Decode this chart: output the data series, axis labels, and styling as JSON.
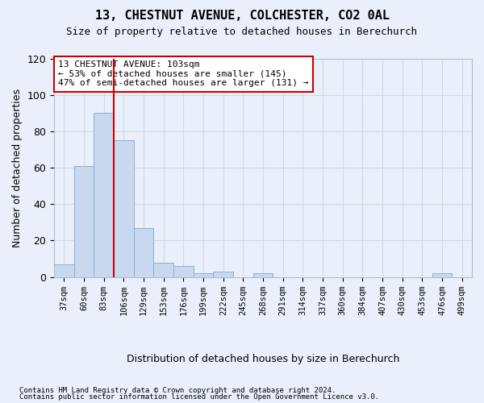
{
  "title": "13, CHESTNUT AVENUE, COLCHESTER, CO2 0AL",
  "subtitle": "Size of property relative to detached houses in Berechurch",
  "xlabel": "Distribution of detached houses by size in Berechurch",
  "ylabel": "Number of detached properties",
  "bar_color": "#c8d9ef",
  "bar_edge_color": "#8aafd4",
  "bar_categories": [
    "37sqm",
    "60sqm",
    "83sqm",
    "106sqm",
    "129sqm",
    "153sqm",
    "176sqm",
    "199sqm",
    "222sqm",
    "245sqm",
    "268sqm",
    "291sqm",
    "314sqm",
    "337sqm",
    "360sqm",
    "384sqm",
    "407sqm",
    "430sqm",
    "453sqm",
    "476sqm",
    "499sqm"
  ],
  "bar_values": [
    7,
    61,
    90,
    75,
    27,
    8,
    6,
    2,
    3,
    0,
    2,
    0,
    0,
    0,
    0,
    0,
    0,
    0,
    0,
    2,
    0
  ],
  "vline_color": "#cc0000",
  "vline_bin_index": 3,
  "annotation_line1": "13 CHESTNUT AVENUE: 103sqm",
  "annotation_line2": "← 53% of detached houses are smaller (145)",
  "annotation_line3": "47% of semi-detached houses are larger (131) →",
  "annotation_box_color": "#ffffff",
  "annotation_box_edge_color": "#cc0000",
  "ylim": [
    0,
    120
  ],
  "yticks": [
    0,
    20,
    40,
    60,
    80,
    100,
    120
  ],
  "grid_color": "#d0d8e8",
  "background_color": "#eaf0fb",
  "footer_line1": "Contains HM Land Registry data © Crown copyright and database right 2024.",
  "footer_line2": "Contains public sector information licensed under the Open Government Licence v3.0."
}
